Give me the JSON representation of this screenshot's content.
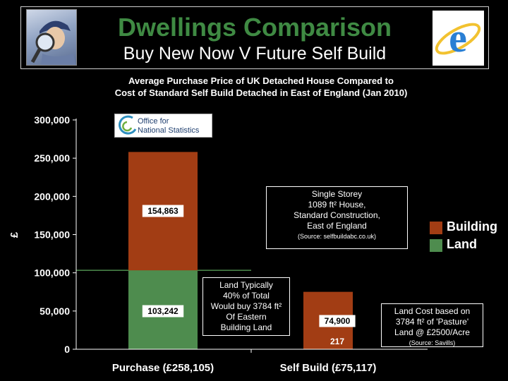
{
  "header": {
    "title": "Dwellings Comparison",
    "subtitle": "Buy New Now V Future Self Build",
    "left_logo_icon": "detective-magnifier-icon",
    "right_logo_icon": "internet-explorer-icon"
  },
  "ons_logo": {
    "line1": "Office for",
    "line2": "National Statistics"
  },
  "chart_data": {
    "type": "bar",
    "stacked": true,
    "title": [
      "Average Purchase Price of UK Detached House Compared to",
      "Cost of Standard Self Build Detached in East of England (Jan 2010)"
    ],
    "categories": [
      "Purchase (£258,105)",
      "Self Build (£75,117)"
    ],
    "series": [
      {
        "name": "Land",
        "color": "#4e8c4e",
        "values": [
          103242,
          217
        ],
        "labels": [
          "103,242",
          "217"
        ]
      },
      {
        "name": "Building",
        "color": "#a23d14",
        "values": [
          154863,
          74900
        ],
        "labels": [
          "154,863",
          "74,900"
        ]
      }
    ],
    "ylabel": "£",
    "ylim": [
      0,
      300000
    ],
    "yticks": [
      0,
      50000,
      100000,
      150000,
      200000,
      250000,
      300000
    ],
    "ytick_labels": [
      "0",
      "50,000",
      "100,000",
      "150,000",
      "200,000",
      "250,000",
      "300,000"
    ],
    "reference_line": {
      "value": 103242,
      "color": "#4e8c4e"
    },
    "legend_position": "right",
    "grid": false
  },
  "callouts": {
    "single_storey": {
      "lines": [
        "Single Storey",
        "1089 ft² House,",
        "Standard Construction,",
        "East of England"
      ],
      "source": "(Source: selfbuildabc.co.uk)"
    },
    "land_typically": {
      "lines": [
        "Land Typically",
        "40% of Total",
        "Would buy 3784 ft²",
        "Of Eastern",
        "Building Land"
      ]
    },
    "land_cost": {
      "lines": [
        "Land Cost based on",
        "3784 ft² of 'Pasture'",
        "Land @ £2500/Acre"
      ],
      "source": "(Source: Savills)"
    }
  }
}
